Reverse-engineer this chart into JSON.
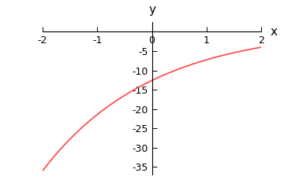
{
  "func": "h(t) = 1 - 5*exp(1 - t/2)",
  "x_min": -2,
  "x_max": 2,
  "y_min": -37,
  "y_max": 2.5,
  "x_ticks": [
    -2,
    -1,
    0,
    1,
    2
  ],
  "y_ticks": [
    -35,
    -30,
    -25,
    -20,
    -15,
    -10,
    -5
  ],
  "line_color": "#ff4444",
  "line_width": 1.2,
  "xlabel": "x",
  "ylabel": "y",
  "background_color": "#ffffff",
  "axis_color": "#000000",
  "tick_fontsize": 9,
  "label_fontsize": 11
}
